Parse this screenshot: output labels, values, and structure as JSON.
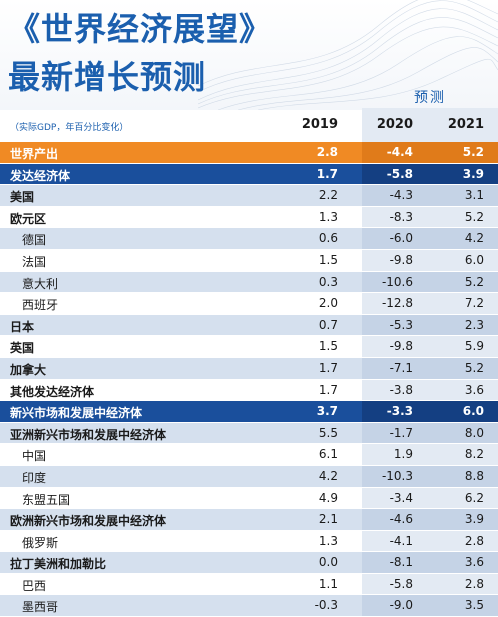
{
  "title": {
    "line1": "《世界经济展望》",
    "line2": "最新增长预测"
  },
  "forecast_label": "预测",
  "unit_note": "（实际GDP，年百分比变化）",
  "years": [
    "2019",
    "2020",
    "2021"
  ],
  "colors": {
    "title_blue": "#1b5fae",
    "world_orange": "#f08a24",
    "group_navy": "#1a4f9c",
    "row_light_blue": "#d5e0ee",
    "forecast_band": "#e3eaf3"
  },
  "rows": [
    {
      "name": "世界产出",
      "v2019": "2.8",
      "v2020": "-4.4",
      "v2021": "5.2"
    },
    {
      "name": "发达经济体",
      "v2019": "1.7",
      "v2020": "-5.8",
      "v2021": "3.9"
    },
    {
      "name": "美国",
      "v2019": "2.2",
      "v2020": "-4.3",
      "v2021": "3.1"
    },
    {
      "name": "欧元区",
      "v2019": "1.3",
      "v2020": "-8.3",
      "v2021": "5.2"
    },
    {
      "name": "德国",
      "v2019": "0.6",
      "v2020": "-6.0",
      "v2021": "4.2"
    },
    {
      "name": "法国",
      "v2019": "1.5",
      "v2020": "-9.8",
      "v2021": "6.0"
    },
    {
      "name": "意大利",
      "v2019": "0.3",
      "v2020": "-10.6",
      "v2021": "5.2"
    },
    {
      "name": "西班牙",
      "v2019": "2.0",
      "v2020": "-12.8",
      "v2021": "7.2"
    },
    {
      "name": "日本",
      "v2019": "0.7",
      "v2020": "-5.3",
      "v2021": "2.3"
    },
    {
      "name": "英国",
      "v2019": "1.5",
      "v2020": "-9.8",
      "v2021": "5.9"
    },
    {
      "name": "加拿大",
      "v2019": "1.7",
      "v2020": "-7.1",
      "v2021": "5.2"
    },
    {
      "name": "其他发达经济体",
      "v2019": "1.7",
      "v2020": "-3.8",
      "v2021": "3.6"
    },
    {
      "name": "新兴市场和发展中经济体",
      "v2019": "3.7",
      "v2020": "-3.3",
      "v2021": "6.0"
    },
    {
      "name": "亚洲新兴市场和发展中经济体",
      "v2019": "5.5",
      "v2020": "-1.7",
      "v2021": "8.0"
    },
    {
      "name": "中国",
      "v2019": "6.1",
      "v2020": "1.9",
      "v2021": "8.2"
    },
    {
      "name": "印度",
      "v2019": "4.2",
      "v2020": "-10.3",
      "v2021": "8.8"
    },
    {
      "name": "东盟五国",
      "v2019": "4.9",
      "v2020": "-3.4",
      "v2021": "6.2"
    },
    {
      "name": "欧洲新兴市场和发展中经济体",
      "v2019": "2.1",
      "v2020": "-4.6",
      "v2021": "3.9"
    },
    {
      "name": "俄罗斯",
      "v2019": "1.3",
      "v2020": "-4.1",
      "v2021": "2.8"
    },
    {
      "name": "拉丁美洲和加勒比",
      "v2019": "0.0",
      "v2020": "-8.1",
      "v2021": "3.6"
    },
    {
      "name": "巴西",
      "v2019": "1.1",
      "v2020": "-5.8",
      "v2021": "2.8"
    },
    {
      "name": "墨西哥",
      "v2019": "-0.3",
      "v2020": "-9.0",
      "v2021": "3.5"
    }
  ]
}
